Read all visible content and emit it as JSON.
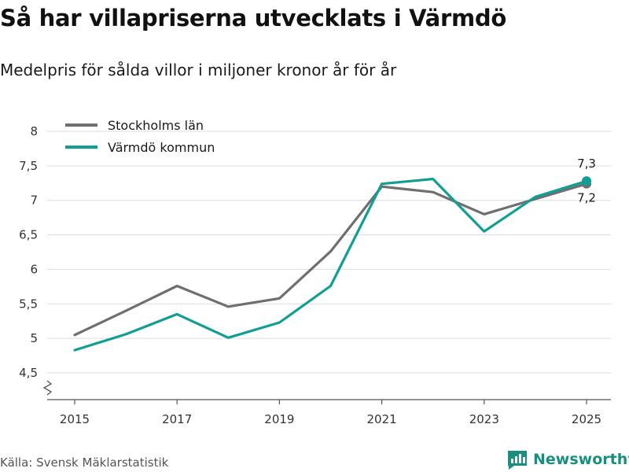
{
  "title": "Så har villapriserna utvecklats i Värmdö",
  "subtitle": "Medelpris för sålda villor i miljoner kronor år för år",
  "source": "Källa: Svensk Mäklarstatistik",
  "brand": "Newsworthy",
  "colors": {
    "stockholm": "#6f6f71",
    "varmdo": "#129e94",
    "grid": "#dcdcdc",
    "brand": "#1a8f80"
  },
  "chart_data": {
    "type": "line",
    "title": "Så har villapriserna utvecklats i Värmdö",
    "subtitle": "Medelpris för sålda villor i miljoner kronor år för år",
    "xlabel": "",
    "ylabel": "",
    "x": [
      2015,
      2016,
      2017,
      2018,
      2019,
      2020,
      2021,
      2022,
      2023,
      2024,
      2025
    ],
    "xticks": [
      "2015",
      "2017",
      "2019",
      "2021",
      "2023",
      "2025"
    ],
    "yticks": [
      "4,5",
      "5",
      "5,5",
      "6",
      "6,5",
      "7",
      "7,5",
      "8"
    ],
    "ylim": [
      4.5,
      8
    ],
    "grid": true,
    "legend_position": "top-left",
    "series": [
      {
        "name": "Stockholms län",
        "color_key": "stockholm",
        "values": [
          5.05,
          5.4,
          5.76,
          5.46,
          5.58,
          6.26,
          7.2,
          7.12,
          6.8,
          7.02,
          7.24
        ],
        "end_label": "7,2"
      },
      {
        "name": "Värmdö kommun",
        "color_key": "varmdo",
        "values": [
          4.83,
          5.06,
          5.35,
          5.01,
          5.23,
          5.76,
          7.24,
          7.31,
          6.55,
          7.05,
          7.28
        ],
        "end_label": "7,3"
      }
    ]
  }
}
